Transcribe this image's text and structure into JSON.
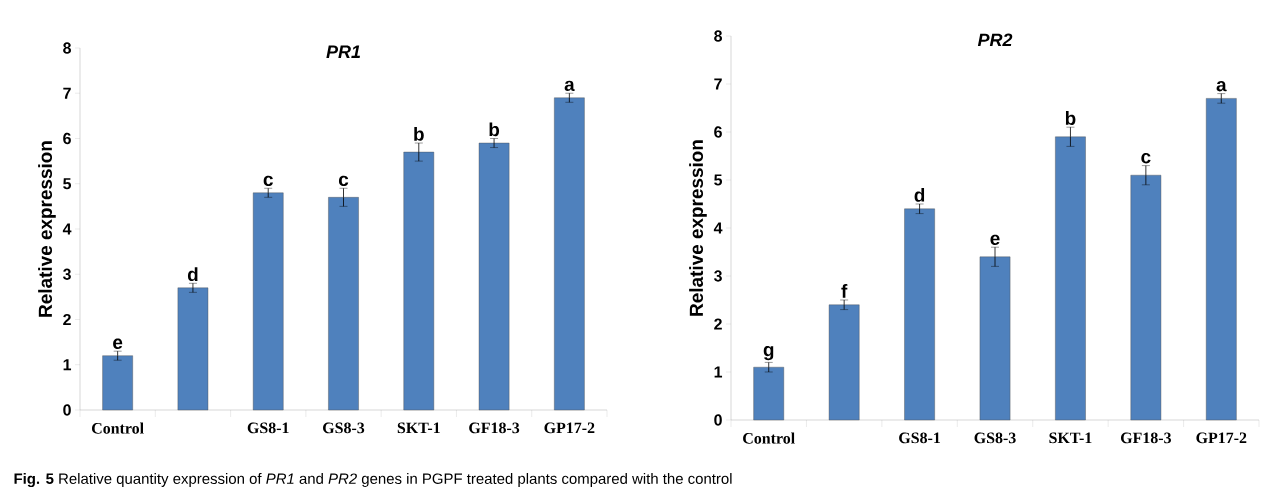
{
  "chart_data": [
    {
      "type": "bar",
      "title": "PR1",
      "ylabel": "Relative expression",
      "categories": [
        "Control",
        null,
        "GS8-1",
        "GS8-3",
        "SKT-1",
        "GF18-3",
        "GP17-2"
      ],
      "values": [
        1.2,
        2.7,
        4.8,
        4.7,
        5.7,
        5.9,
        6.9
      ],
      "errors": [
        0.1,
        0.1,
        0.1,
        0.2,
        0.2,
        0.1,
        0.1
      ],
      "value_labels": [
        "e",
        "d",
        "c",
        "c",
        "b",
        "b",
        "a"
      ],
      "color": "#4f81bd",
      "ylim": [
        0,
        8
      ],
      "yticks": [
        0,
        1,
        2,
        3,
        4,
        5,
        6,
        7,
        8
      ],
      "annotations": [
        "**Fig. 5** Relative quantity expression of *PR1* and *PR2* genes in PGPF treated plants compared with the control"
      ]
    },
    {
      "type": "bar",
      "title": "PR2",
      "ylabel": "Relative expression",
      "categories": [
        "Control",
        null,
        "GS8-1",
        "GS8-3",
        "SKT-1",
        "GF18-3",
        "GP17-2"
      ],
      "values": [
        1.1,
        2.4,
        4.4,
        3.4,
        5.9,
        5.1,
        6.7
      ],
      "errors": [
        0.1,
        0.1,
        0.1,
        0.2,
        0.2,
        0.2,
        0.1
      ],
      "value_labels": [
        "g",
        "f",
        "d",
        "e",
        "b",
        "c",
        "a"
      ],
      "color": "#4f81bd",
      "ylim": [
        0,
        8
      ],
      "yticks": [
        0,
        1,
        2,
        3,
        4,
        5,
        6,
        7,
        8
      ]
    }
  ]
}
